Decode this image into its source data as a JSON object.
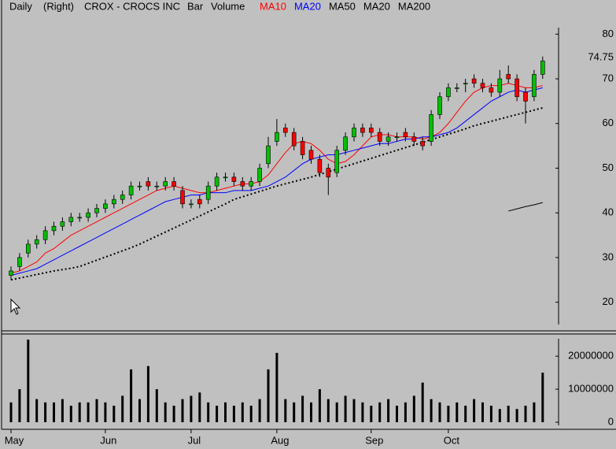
{
  "chart_data": {
    "type": "candlestick",
    "period": "Daily",
    "scale_side": "(Right)",
    "title": "CROX - CROCS INC",
    "bar_style": "Bar",
    "volume_label": "Volume",
    "categories": [
      "May",
      null,
      null,
      null,
      null,
      null,
      null,
      null,
      null,
      null,
      null,
      "Jun",
      null,
      null,
      null,
      null,
      null,
      null,
      null,
      null,
      null,
      "Jul",
      null,
      null,
      null,
      null,
      null,
      null,
      null,
      null,
      null,
      "Aug",
      null,
      null,
      null,
      null,
      null,
      null,
      null,
      null,
      null,
      null,
      "Sep",
      null,
      null,
      null,
      null,
      null,
      null,
      null,
      null,
      "Oct",
      null,
      null,
      null,
      null,
      null,
      null,
      null,
      null,
      null,
      null,
      null
    ],
    "open": [
      26,
      28,
      31,
      33,
      34,
      36,
      37,
      38,
      39,
      39,
      40,
      41,
      42,
      43,
      44,
      46,
      47,
      46,
      46,
      47,
      45,
      42,
      43,
      43,
      46,
      48,
      48,
      47,
      46,
      47,
      51,
      56,
      59,
      58,
      56,
      54,
      52,
      50,
      49,
      54,
      57,
      59,
      59,
      58,
      56,
      57,
      58,
      57,
      56,
      56,
      62,
      66,
      68,
      69,
      70,
      69,
      68,
      67,
      71,
      70,
      67,
      66,
      71
    ],
    "high": [
      28,
      31,
      34,
      35,
      37,
      38,
      39,
      40,
      40,
      41,
      42,
      43,
      44,
      45,
      47,
      47,
      48,
      47,
      48,
      48,
      46,
      43,
      44,
      47,
      49,
      49,
      49,
      48,
      48,
      51,
      57,
      61,
      60,
      59,
      57,
      55,
      53,
      51,
      55,
      58,
      60,
      60,
      60,
      59,
      58,
      58,
      59,
      58,
      57,
      63,
      67,
      69,
      69,
      70,
      71,
      70,
      69,
      72,
      73,
      71,
      68,
      72,
      75
    ],
    "low": [
      25,
      27,
      30,
      32,
      33,
      35,
      36,
      37,
      38,
      38,
      39,
      40,
      41,
      42,
      43,
      45,
      45,
      45,
      45,
      45,
      41,
      41,
      41,
      42,
      45,
      47,
      46,
      45,
      45,
      46,
      50,
      55,
      57,
      54,
      52,
      51,
      48,
      44,
      48,
      53,
      56,
      57,
      57,
      55,
      55,
      56,
      56,
      55,
      54,
      55,
      61,
      65,
      67,
      67,
      68,
      67,
      66,
      66,
      69,
      65,
      60,
      65,
      70
    ],
    "close": [
      27,
      30,
      33,
      34,
      36,
      37,
      38,
      39,
      39,
      40,
      41,
      42,
      43,
      44,
      46,
      46,
      46,
      46,
      47,
      46,
      42,
      42,
      42,
      46,
      48,
      48,
      47,
      46,
      47,
      50,
      55,
      58,
      58,
      55,
      53,
      52,
      49,
      48,
      54,
      57,
      59,
      58,
      58,
      56,
      57,
      57,
      57,
      56,
      55,
      62,
      66,
      68,
      68,
      69,
      69,
      68,
      67,
      70,
      70,
      66,
      65,
      71,
      74
    ],
    "up_color": "#00c000",
    "down_color": "#ff0000",
    "last_price": 74.75,
    "moving_averages": [
      {
        "name": "MA10",
        "color": "#ff0000",
        "values": [
          26.5,
          27,
          28,
          29,
          31,
          32,
          33.5,
          35,
          36,
          37,
          38,
          39,
          40,
          41,
          42,
          43,
          44,
          45,
          45.5,
          46,
          45.5,
          45,
          44.5,
          44.5,
          45,
          45.5,
          46,
          46.5,
          46.5,
          47,
          48.5,
          51,
          53.5,
          55.5,
          56,
          55.5,
          54,
          52,
          51,
          51.5,
          53,
          55,
          57,
          57.5,
          57.5,
          57,
          57,
          57,
          56.5,
          57,
          58,
          60,
          62.5,
          65,
          67,
          68,
          68.5,
          68.5,
          69,
          68.5,
          68,
          68,
          68.5
        ]
      },
      {
        "name": "MA20",
        "color": "#0000ff",
        "values": [
          26,
          26.5,
          27,
          27.5,
          28.5,
          29.5,
          30.5,
          31.5,
          32.5,
          33.5,
          34.5,
          35.5,
          36.5,
          37.5,
          38.5,
          39.5,
          40.5,
          41.5,
          42.5,
          43,
          43.5,
          44,
          44,
          44.5,
          44.5,
          44.5,
          45,
          45,
          45,
          45.5,
          46,
          47,
          48,
          49.5,
          51,
          52,
          52.5,
          53,
          53,
          53.5,
          54,
          54.5,
          55,
          55.5,
          55.5,
          56,
          56.5,
          56.5,
          57,
          57,
          57.5,
          58,
          59,
          60.5,
          62,
          63.5,
          65,
          66,
          67,
          67.5,
          67,
          67.5,
          68
        ]
      },
      {
        "name": "MA50",
        "color": "#000000",
        "dotted": true,
        "values": [
          25,
          25.4,
          25.8,
          26.2,
          26.6,
          27,
          27.3,
          27.6,
          28,
          28.7,
          29.4,
          30.1,
          30.8,
          31.5,
          32.2,
          33,
          33.9,
          34.8,
          35.7,
          36.6,
          37.5,
          38.4,
          39.3,
          40.2,
          41.1,
          42,
          43,
          43.6,
          44.2,
          44.8,
          45.4,
          46,
          46.5,
          47,
          47.5,
          48,
          48.6,
          49.2,
          49.8,
          50.4,
          51,
          51.6,
          52.2,
          52.8,
          53.4,
          54,
          54.6,
          55.2,
          55.8,
          56.4,
          57,
          57.6,
          58.2,
          58.8,
          59.5,
          60,
          60.5,
          61,
          61.5,
          62,
          62.5,
          63,
          63.5
        ]
      },
      {
        "name": "MA20",
        "color": "#000000"
      },
      {
        "name": "MA200",
        "color": "#000000",
        "values": [
          null,
          null,
          null,
          null,
          null,
          null,
          null,
          null,
          null,
          null,
          null,
          null,
          null,
          null,
          null,
          null,
          null,
          null,
          null,
          null,
          null,
          null,
          null,
          null,
          null,
          null,
          null,
          null,
          null,
          null,
          null,
          null,
          null,
          null,
          null,
          null,
          null,
          null,
          null,
          null,
          null,
          null,
          null,
          null,
          null,
          null,
          null,
          null,
          null,
          null,
          null,
          null,
          null,
          null,
          null,
          null,
          null,
          null,
          40.4,
          40.9,
          41.4,
          41.8,
          42.3
        ]
      }
    ],
    "ylim": [
      15,
      82
    ],
    "yticks": [
      20,
      30,
      40,
      50,
      60,
      70,
      80
    ],
    "volume": [
      6000000,
      10000000,
      25000000,
      7000000,
      6000000,
      6000000,
      7000000,
      5000000,
      6000000,
      6000000,
      7000000,
      6000000,
      5000000,
      8000000,
      16000000,
      7000000,
      17000000,
      10000000,
      6000000,
      5000000,
      7000000,
      8000000,
      9000000,
      6000000,
      5000000,
      6000000,
      5000000,
      6000000,
      5000000,
      7000000,
      16000000,
      21000000,
      7000000,
      6000000,
      8000000,
      6000000,
      10000000,
      7000000,
      6000000,
      8000000,
      7000000,
      6000000,
      5000000,
      6000000,
      7000000,
      5000000,
      6000000,
      8000000,
      12000000,
      7000000,
      6000000,
      5000000,
      6000000,
      5000000,
      7000000,
      6000000,
      5000000,
      4000000,
      5000000,
      4000000,
      5000000,
      6000000,
      15000000
    ],
    "volume_color": "#000000",
    "vlim": [
      0,
      26000000
    ],
    "vticks": [
      0,
      10000000,
      20000000
    ]
  }
}
